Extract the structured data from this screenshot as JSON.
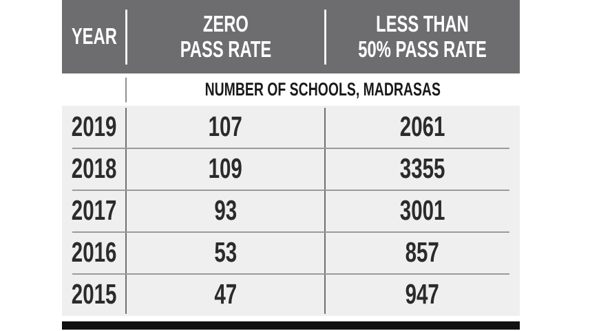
{
  "chart_data": {
    "type": "table",
    "title": "NUMBER OF SCHOOLS, MADRASAS",
    "columns": [
      "YEAR",
      "ZERO PASS RATE",
      "LESS THAN 50% PASS RATE"
    ],
    "header": {
      "year": "YEAR",
      "zero_line1": "ZERO",
      "zero_line2": "PASS RATE",
      "less_line1": "LESS THAN",
      "less_line2": "50% PASS RATE"
    },
    "unit_note": "NUMBER OF SCHOOLS, MADRASAS",
    "rows": [
      {
        "year": "2019",
        "zero_pass_rate": "107",
        "less_than_50_pass_rate": "2061"
      },
      {
        "year": "2018",
        "zero_pass_rate": "109",
        "less_than_50_pass_rate": "3355"
      },
      {
        "year": "2017",
        "zero_pass_rate": "93",
        "less_than_50_pass_rate": "3001"
      },
      {
        "year": "2016",
        "zero_pass_rate": "53",
        "less_than_50_pass_rate": "857"
      },
      {
        "year": "2015",
        "zero_pass_rate": "47",
        "less_than_50_pass_rate": "947"
      }
    ]
  },
  "colors": {
    "header_bg": "#6d6d6f",
    "header_text": "#ffffff",
    "units_text": "#1a1a1a",
    "body_bg": "#efefef",
    "body_text": "#2b2b2b",
    "grid_line": "#9a9a9a",
    "bottom_bar": "#111111",
    "page_bg": "#ffffff"
  }
}
